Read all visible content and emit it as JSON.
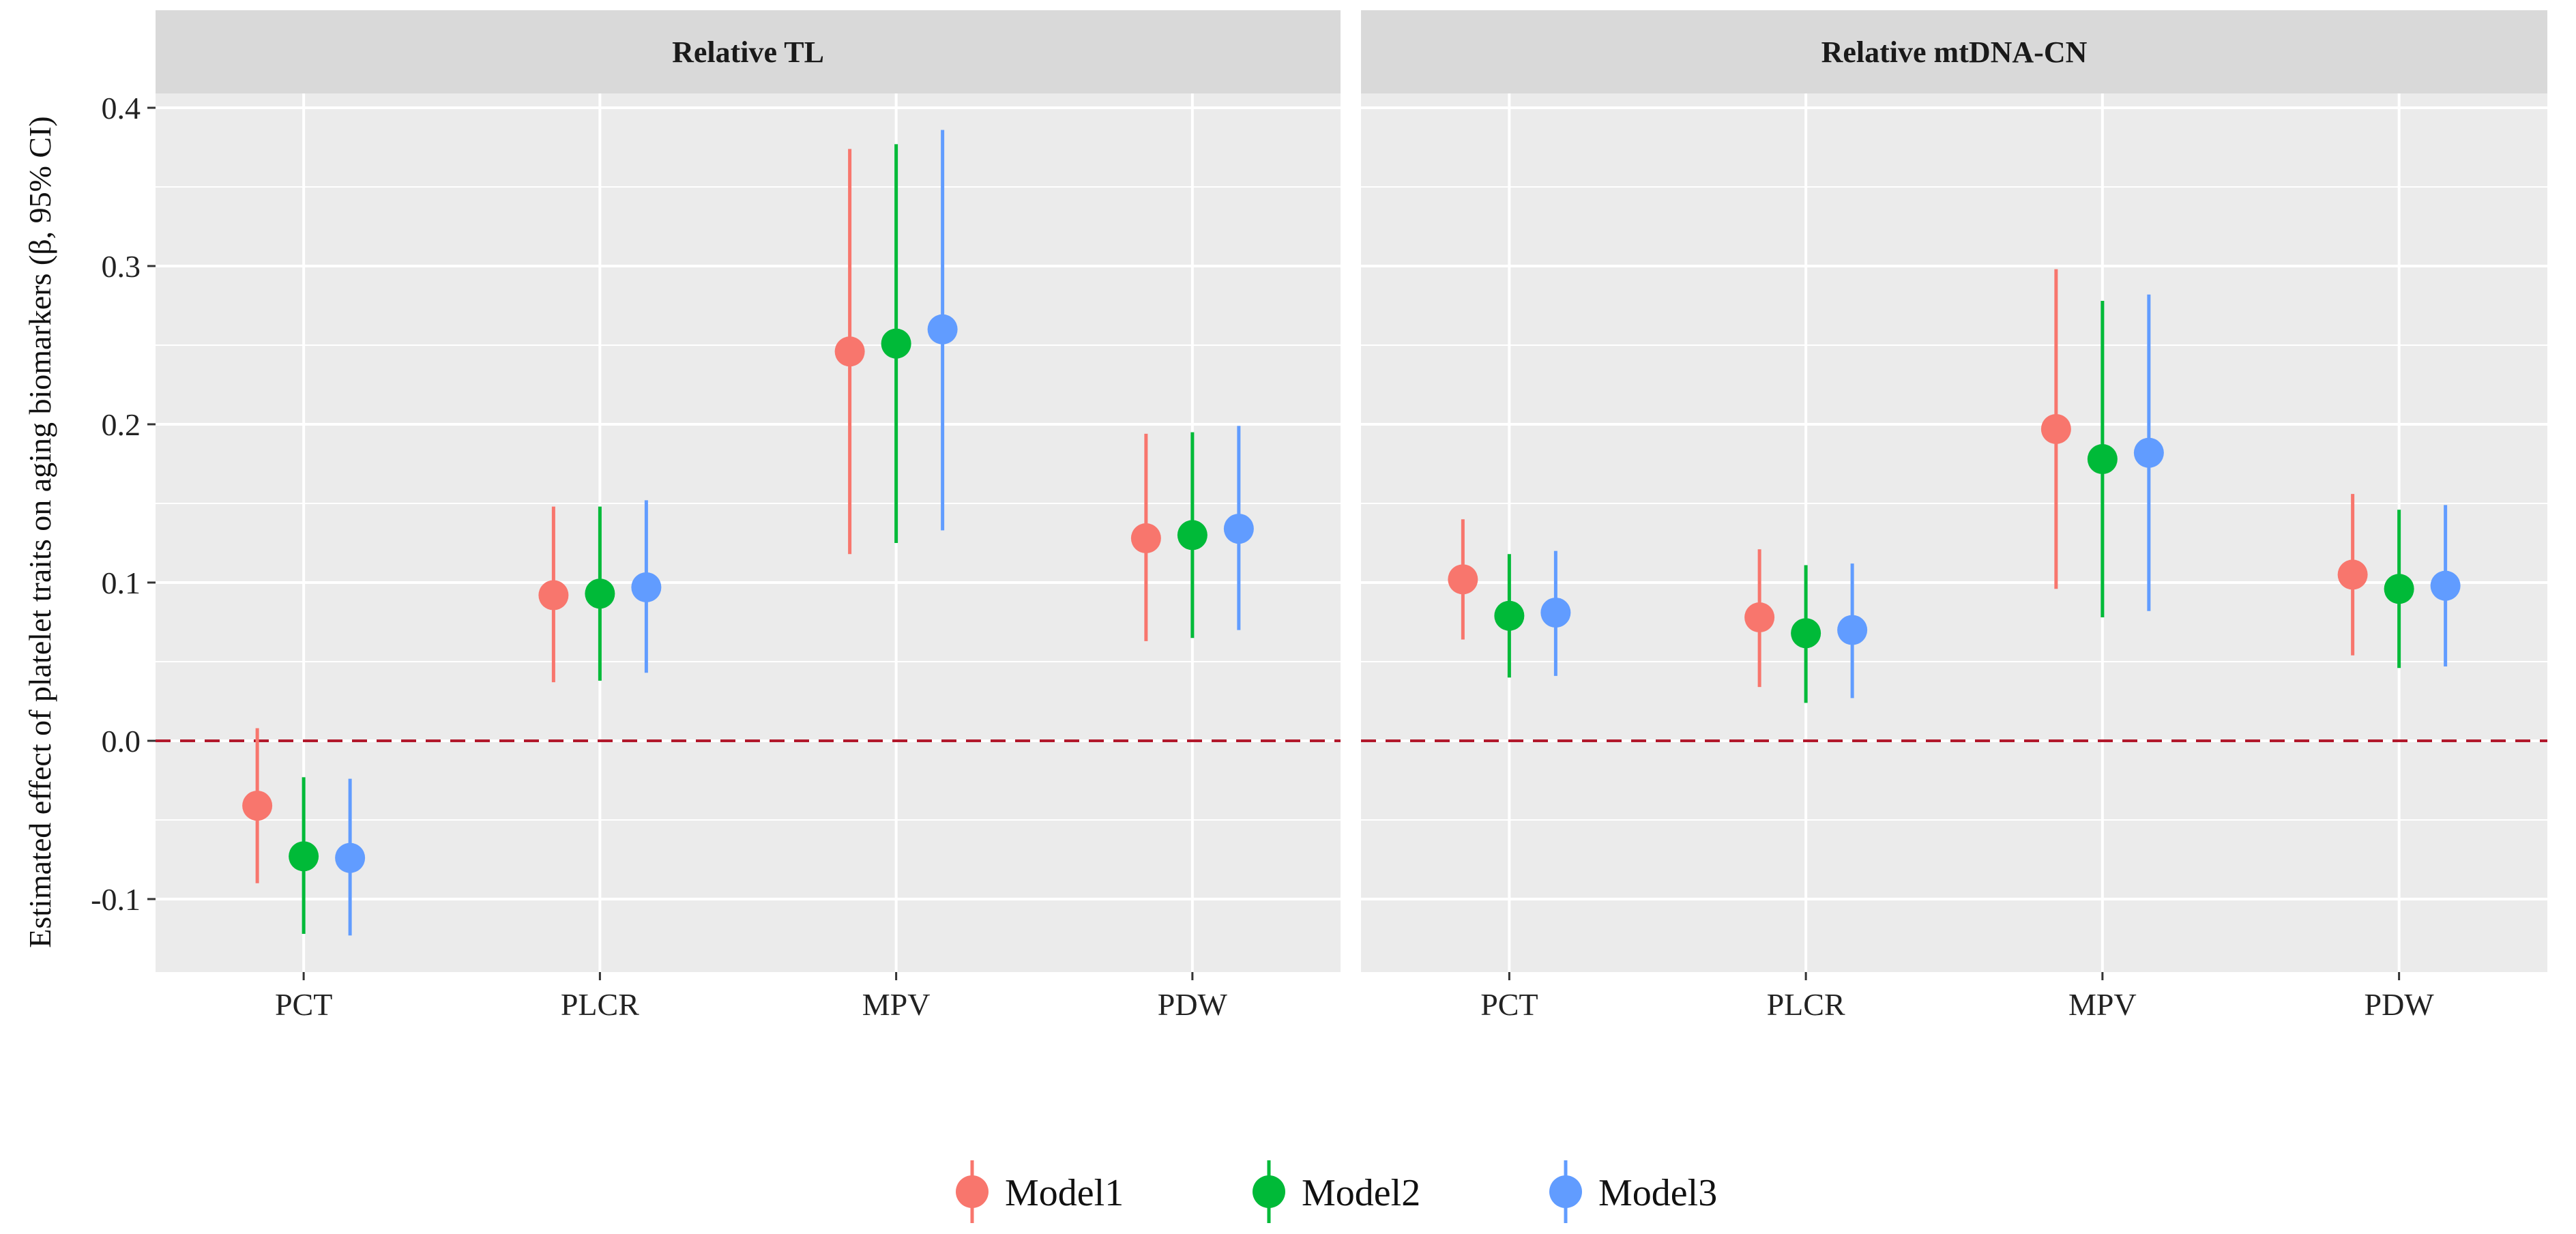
{
  "chart_data": {
    "type": "pointrange",
    "ylabel": "Estimated effect of platelet traits on aging biomarkers (β, 95% CI)",
    "xlabel": "",
    "ylim": [
      -0.15,
      0.42
    ],
    "yticks": [
      -0.1,
      0.0,
      0.1,
      0.2,
      0.3,
      0.4
    ],
    "ytick_labels": [
      "-0.1",
      "0.0",
      "0.1",
      "0.2",
      "0.3",
      "0.4"
    ],
    "reference_line": {
      "y": 0.0,
      "style": "dashed",
      "color": "#b2182b"
    },
    "categories": [
      "PCT",
      "PLCR",
      "MPV",
      "PDW"
    ],
    "legend": {
      "position": "bottom"
    },
    "series_styles": [
      {
        "name": "Model1",
        "color": "#F8766D"
      },
      {
        "name": "Model2",
        "color": "#00BA38"
      },
      {
        "name": "Model3",
        "color": "#619CFF"
      }
    ],
    "panels": [
      {
        "title": "Relative TL",
        "series": [
          {
            "name": "Model1",
            "estimate": [
              -0.041,
              0.092,
              0.246,
              0.128
            ],
            "lower": [
              -0.09,
              0.037,
              0.118,
              0.063
            ],
            "upper": [
              0.008,
              0.148,
              0.374,
              0.194
            ]
          },
          {
            "name": "Model2",
            "estimate": [
              -0.073,
              0.093,
              0.251,
              0.13
            ],
            "lower": [
              -0.122,
              0.038,
              0.125,
              0.065
            ],
            "upper": [
              -0.023,
              0.148,
              0.377,
              0.195
            ]
          },
          {
            "name": "Model3",
            "estimate": [
              -0.074,
              0.097,
              0.26,
              0.134
            ],
            "lower": [
              -0.123,
              0.043,
              0.133,
              0.07
            ],
            "upper": [
              -0.024,
              0.152,
              0.386,
              0.199
            ]
          }
        ]
      },
      {
        "title": "Relative mtDNA-CN",
        "series": [
          {
            "name": "Model1",
            "estimate": [
              0.102,
              0.078,
              0.197,
              0.105
            ],
            "lower": [
              0.064,
              0.034,
              0.096,
              0.054
            ],
            "upper": [
              0.14,
              0.121,
              0.298,
              0.156
            ]
          },
          {
            "name": "Model2",
            "estimate": [
              0.079,
              0.068,
              0.178,
              0.096
            ],
            "lower": [
              0.04,
              0.024,
              0.078,
              0.046
            ],
            "upper": [
              0.118,
              0.111,
              0.278,
              0.146
            ]
          },
          {
            "name": "Model3",
            "estimate": [
              0.081,
              0.07,
              0.182,
              0.098
            ],
            "lower": [
              0.041,
              0.027,
              0.082,
              0.047
            ],
            "upper": [
              0.12,
              0.112,
              0.282,
              0.149
            ]
          }
        ]
      }
    ]
  }
}
